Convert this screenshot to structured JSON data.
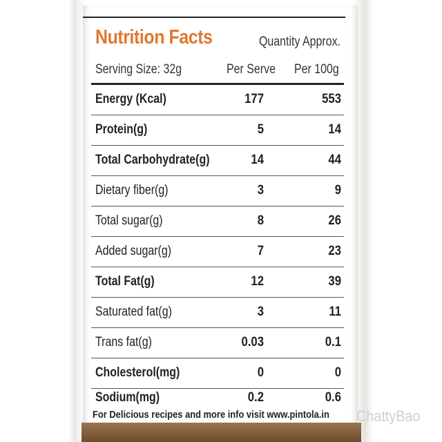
{
  "header": {
    "title": "Nutrition Facts",
    "quantity_note": "Quantity Approx.",
    "serving_size": "Serving Size: 32g",
    "col_per_serve": "Per Serve",
    "col_per_100g": "Per 100g"
  },
  "rows": [
    {
      "name": "Energy (Kcal)",
      "per_serve": "177",
      "per_100g": "553"
    },
    {
      "name": "Protein(g)",
      "per_serve": "5",
      "per_100g": "14"
    },
    {
      "name": "Total Carbohydrate(g)",
      "per_serve": "14",
      "per_100g": "44"
    },
    {
      "name": "Dietary fiber(g)",
      "per_serve": "3",
      "per_100g": "9"
    },
    {
      "name": "Total sugar(g)",
      "per_serve": "8",
      "per_100g": "26"
    },
    {
      "name": "Added sugar(g)",
      "per_serve": "7",
      "per_100g": "23"
    },
    {
      "name": "Total Fat(g)",
      "per_serve": "12",
      "per_100g": "39"
    },
    {
      "name": "Saturated fat(g)",
      "per_serve": "3",
      "per_100g": "11"
    },
    {
      "name": "Trans fat(g)",
      "per_serve": "0.03",
      "per_100g": "0.1"
    },
    {
      "name": "Cholesterol(mg)",
      "per_serve": "0",
      "per_100g": "0"
    },
    {
      "name": "Sodium(mg)",
      "per_serve": "0.2",
      "per_100g": "0.6"
    }
  ],
  "footer": "For Delicious recipes and more info visit www.pintola.in",
  "watermark": "ChattyBao",
  "colors": {
    "title": "#e07830",
    "jar_base": "#7a5535"
  }
}
